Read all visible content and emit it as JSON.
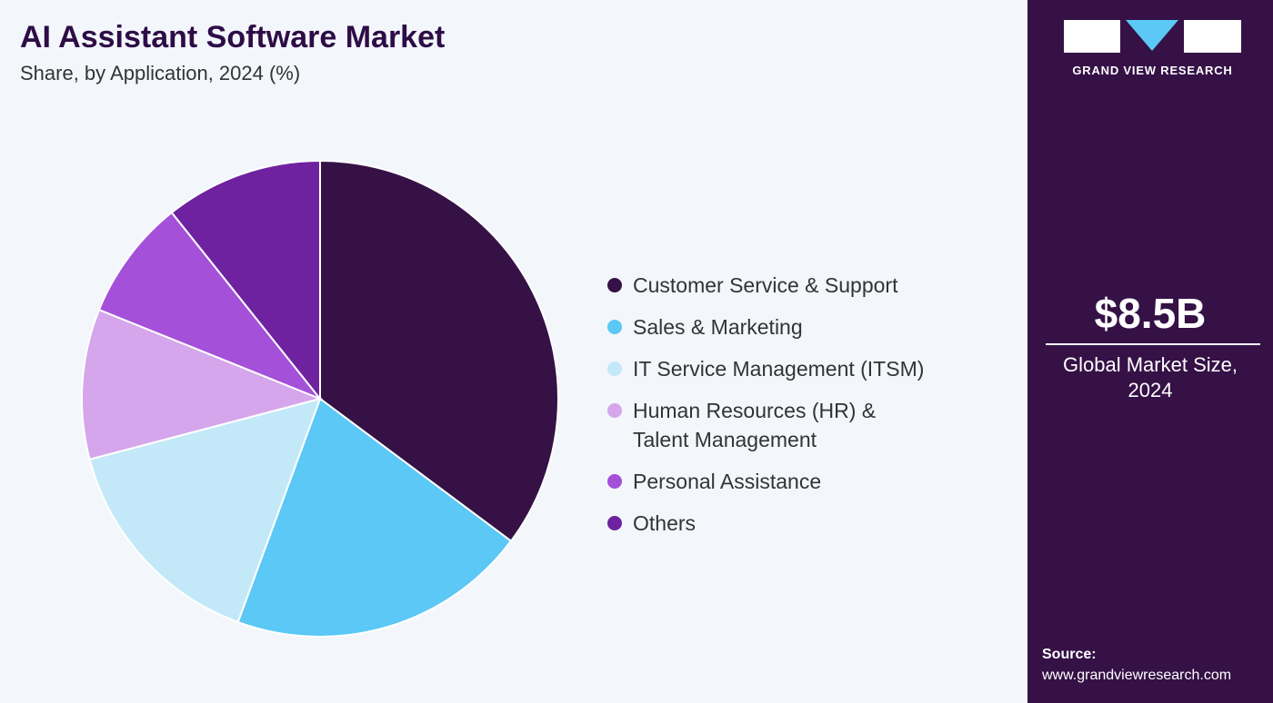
{
  "chart_data": {
    "type": "pie",
    "title": "AI Assistant Software Market",
    "subtitle": "Share, by Application, 2024 (%)",
    "categories": [
      "Customer Service & Support",
      "Sales & Marketing",
      "IT Service Management (ITSM)",
      "Human Resources (HR) & Talent Management",
      "Personal Assistance",
      "Others"
    ],
    "legend_lines": [
      [
        "Customer Service & Support"
      ],
      [
        "Sales & Marketing"
      ],
      [
        "IT Service Management (ITSM)"
      ],
      [
        "Human Resources (HR) &",
        "Talent Management"
      ],
      [
        "Personal Assistance"
      ],
      [
        "Others"
      ]
    ],
    "values": [
      35.2,
      20.4,
      15.3,
      10.2,
      8.2,
      10.7
    ],
    "colors": [
      "#351146",
      "#5bc8f5",
      "#c3e9f9",
      "#d5a6eb",
      "#a450d9",
      "#6e22a0"
    ],
    "legend_placement": "right"
  },
  "sidebar": {
    "brand": "GRAND VIEW RESEARCH",
    "market_size": "$8.5B",
    "market_size_label": [
      "Global Market Size,",
      "2024"
    ],
    "source_label": "Source:",
    "source_url": "www.grandviewresearch.com",
    "colors": {
      "background": "#351146",
      "logo_accent": "#5bc8f5"
    }
  }
}
